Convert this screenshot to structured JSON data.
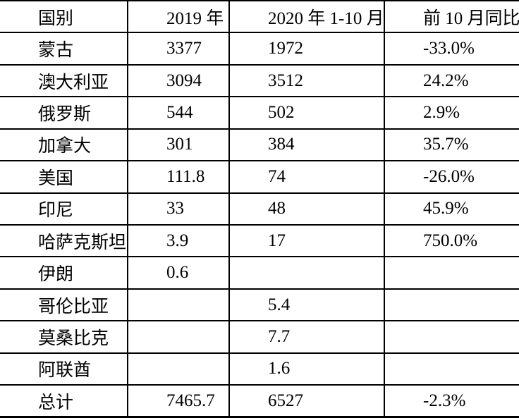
{
  "table": {
    "headers": [
      "国别",
      "2019 年",
      "2020 年 1-10 月",
      "前 10 月同比"
    ],
    "rows": [
      [
        "蒙古",
        "3377",
        "1972",
        "-33.0%"
      ],
      [
        "澳大利亚",
        "3094",
        "3512",
        "24.2%"
      ],
      [
        "俄罗斯",
        "544",
        "502",
        "2.9%"
      ],
      [
        "加拿大",
        "301",
        "384",
        "35.7%"
      ],
      [
        "美国",
        "111.8",
        "74",
        "-26.0%"
      ],
      [
        "印尼",
        "33",
        "48",
        "45.9%"
      ],
      [
        "哈萨克斯坦",
        "3.9",
        "17",
        "750.0%"
      ],
      [
        "伊朗",
        "0.6",
        "",
        ""
      ],
      [
        "哥伦比亚",
        "",
        "5.4",
        ""
      ],
      [
        "莫桑比克",
        "",
        "7.7",
        ""
      ],
      [
        "阿联酋",
        "",
        "1.6",
        ""
      ],
      [
        "总计",
        "7465.7",
        "6527",
        "-2.3%"
      ]
    ],
    "colors": {
      "text": "#000000",
      "border": "#000000",
      "background": "#ffffff"
    }
  }
}
